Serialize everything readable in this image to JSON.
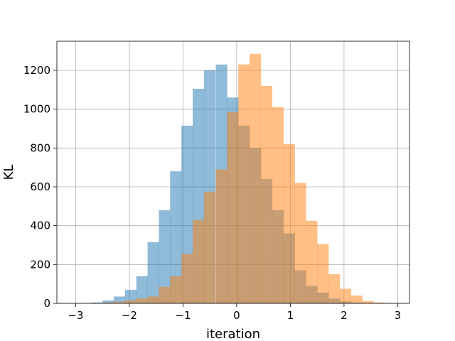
{
  "chart_data": {
    "type": "bar",
    "title": "",
    "xlabel": "iteration",
    "ylabel": "KL",
    "xlim": [
      -3.35,
      3.22
    ],
    "ylim": [
      0,
      1350
    ],
    "grid": true,
    "bin_width": 0.2105,
    "xticks": [
      -3,
      -2,
      -1,
      0,
      1,
      2,
      3
    ],
    "xtick_labels": [
      "−3",
      "−2",
      "−1",
      "0",
      "1",
      "2",
      "3"
    ],
    "yticks": [
      0,
      200,
      400,
      600,
      800,
      1000,
      1200
    ],
    "ytick_labels": [
      "0",
      "200",
      "400",
      "600",
      "800",
      "1000",
      "1200"
    ],
    "series": [
      {
        "color": "#1f77b4",
        "opacity": 0.5,
        "bin_starts": [
          -3.13,
          -2.92,
          -2.71,
          -2.5,
          -2.29,
          -2.08,
          -1.87,
          -1.66,
          -1.45,
          -1.24,
          -1.03,
          -0.82,
          -0.61,
          -0.39,
          -0.18,
          0.03,
          0.24,
          0.45,
          0.66,
          0.87,
          1.08,
          1.29,
          1.5,
          1.71,
          1.92,
          2.13,
          2.34,
          2.55,
          2.76
        ],
        "values": [
          1,
          2,
          5,
          15,
          35,
          70,
          140,
          315,
          480,
          680,
          915,
          1105,
          1200,
          1230,
          1060,
          915,
          800,
          640,
          480,
          360,
          170,
          90,
          55,
          25,
          10,
          4,
          2,
          1,
          1
        ]
      },
      {
        "color": "#ff7f0e",
        "opacity": 0.5,
        "bin_starts": [
          -2.92,
          -2.71,
          -2.5,
          -2.29,
          -2.08,
          -1.87,
          -1.66,
          -1.45,
          -1.24,
          -1.03,
          -0.82,
          -0.61,
          -0.39,
          -0.18,
          0.03,
          0.24,
          0.45,
          0.66,
          0.87,
          1.08,
          1.29,
          1.5,
          1.71,
          1.92,
          2.13,
          2.34,
          2.55,
          2.76,
          2.97
        ],
        "values": [
          1,
          2,
          4,
          8,
          15,
          25,
          35,
          85,
          140,
          255,
          430,
          575,
          690,
          985,
          1230,
          1285,
          1120,
          1010,
          820,
          620,
          425,
          305,
          150,
          75,
          40,
          12,
          5,
          2,
          1
        ]
      }
    ]
  }
}
